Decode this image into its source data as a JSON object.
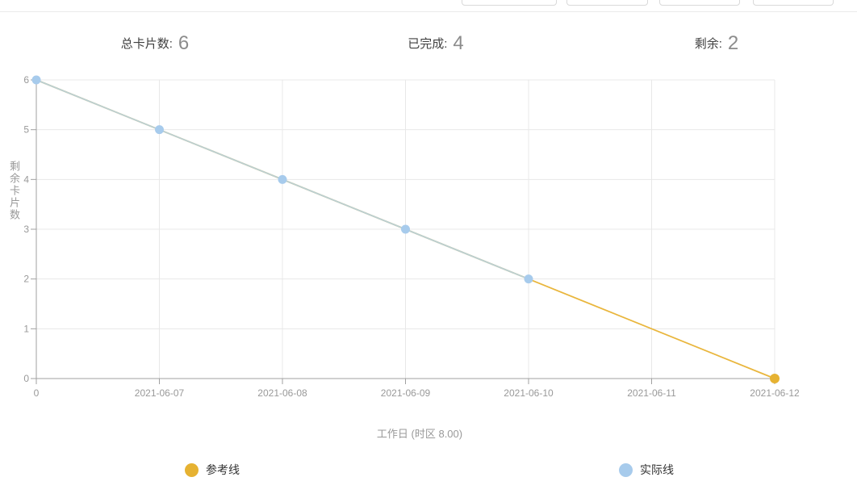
{
  "stats": {
    "total": {
      "label": "总卡片数:",
      "value": "6"
    },
    "completed": {
      "label": "已完成:",
      "value": "4"
    },
    "remaining": {
      "label": "剩余:",
      "value": "2"
    }
  },
  "chart_data": {
    "type": "line",
    "title": "",
    "xlabel": "工作日 (时区 8.00)",
    "ylabel": "剩余卡片数",
    "categories": [
      "0",
      "2021-06-07",
      "2021-06-08",
      "2021-06-09",
      "2021-06-10",
      "2021-06-11",
      "2021-06-12"
    ],
    "ylim": [
      0,
      6
    ],
    "yticks": [
      0,
      1,
      2,
      3,
      4,
      5,
      6
    ],
    "grid": true,
    "legend_position": "bottom",
    "grid_color": "#e8e8e8",
    "axis_color": "#a0a0a0",
    "tick_color": "#999999",
    "series": [
      {
        "name": "参考线",
        "color": "#e9b63d",
        "marker_color": "#e6b232",
        "marker_radius": 6,
        "points": [
          [
            0,
            6
          ],
          [
            6,
            0
          ]
        ],
        "markers": [
          [
            6,
            0
          ]
        ]
      },
      {
        "name": "实际线",
        "color": "#bacfd3",
        "marker_color": "#a7cbec",
        "marker_radius": 5.5,
        "points": [
          [
            0,
            6
          ],
          [
            1,
            5
          ],
          [
            2,
            4
          ],
          [
            3,
            3
          ],
          [
            4,
            2
          ]
        ],
        "markers": [
          [
            0,
            6
          ],
          [
            1,
            5
          ],
          [
            2,
            4
          ],
          [
            3,
            3
          ],
          [
            4,
            2
          ]
        ]
      }
    ]
  }
}
